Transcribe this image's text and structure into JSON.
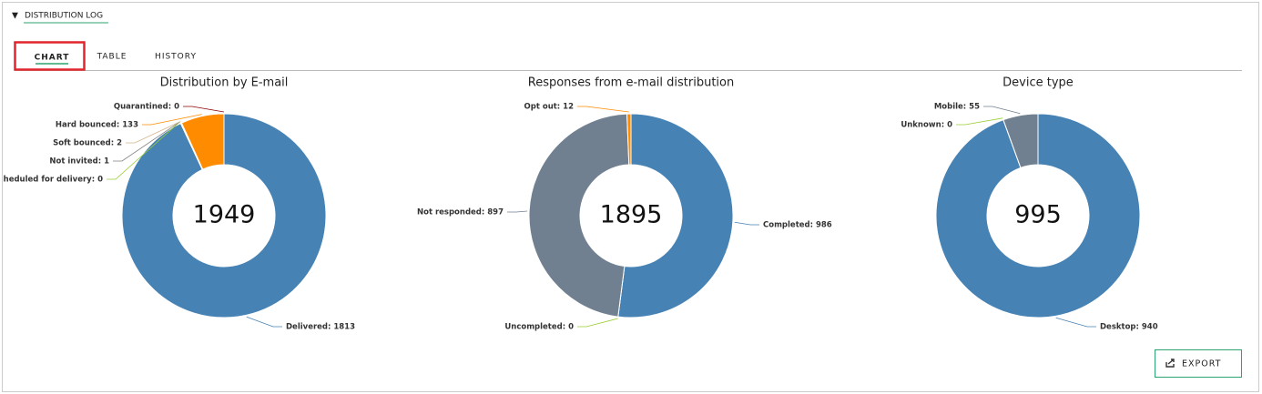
{
  "header": {
    "title": "DISTRIBUTION LOG"
  },
  "tabs": [
    "CHART",
    "TABLE",
    "HISTORY"
  ],
  "chart_data": [
    {
      "type": "pie",
      "title": "Distribution by E-mail",
      "total": 1949,
      "values": [
        1813,
        0,
        1,
        2,
        133,
        0
      ],
      "value_labels": [
        "Delivered: 1813",
        "heduled for delivery: 0",
        "Not invited: 1",
        "Soft bounced: 2",
        "Hard bounced: 133",
        "Quarantined: 0"
      ],
      "colors": [
        "#4682b4",
        "#9acd32",
        "#808080",
        "#d2b48c",
        "#ff8c00",
        "#8b0000"
      ]
    },
    {
      "type": "pie",
      "title": "Responses from e-mail distribution",
      "total": 1895,
      "values": [
        986,
        0,
        897,
        12
      ],
      "value_labels": [
        "Completed: 986",
        "Uncompleted: 0",
        "Not responded: 897",
        "Opt out: 12"
      ],
      "colors": [
        "#4682b4",
        "#9acd32",
        "#708090",
        "#ff8c00"
      ]
    },
    {
      "type": "pie",
      "title": "Device type",
      "total": 995,
      "values": [
        940,
        0,
        55
      ],
      "value_labels": [
        "Desktop: 940",
        "Unknown: 0",
        "Mobile: 55"
      ],
      "colors": [
        "#4682b4",
        "#9acd32",
        "#708090"
      ]
    }
  ],
  "export": "EXPORT"
}
